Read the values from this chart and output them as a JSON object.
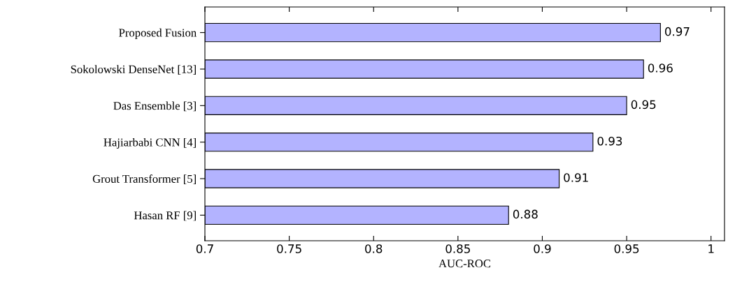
{
  "chart_data": {
    "type": "bar",
    "orientation": "horizontal",
    "categories": [
      "Proposed Fusion",
      "Sokolowski DenseNet [13]",
      "Das Ensemble [3]",
      "Hajiarbabi CNN [4]",
      "Grout Transformer [5]",
      "Hasan RF [9]"
    ],
    "values": [
      0.97,
      0.96,
      0.95,
      0.93,
      0.91,
      0.88
    ],
    "color": "#b3b3ff",
    "xlabel": "AUC-ROC",
    "xlim": [
      0.7,
      1.008
    ],
    "xticks": [
      0.7,
      0.75,
      0.8,
      0.85,
      0.9,
      0.95,
      1
    ],
    "data_labels": true,
    "grid": false
  }
}
